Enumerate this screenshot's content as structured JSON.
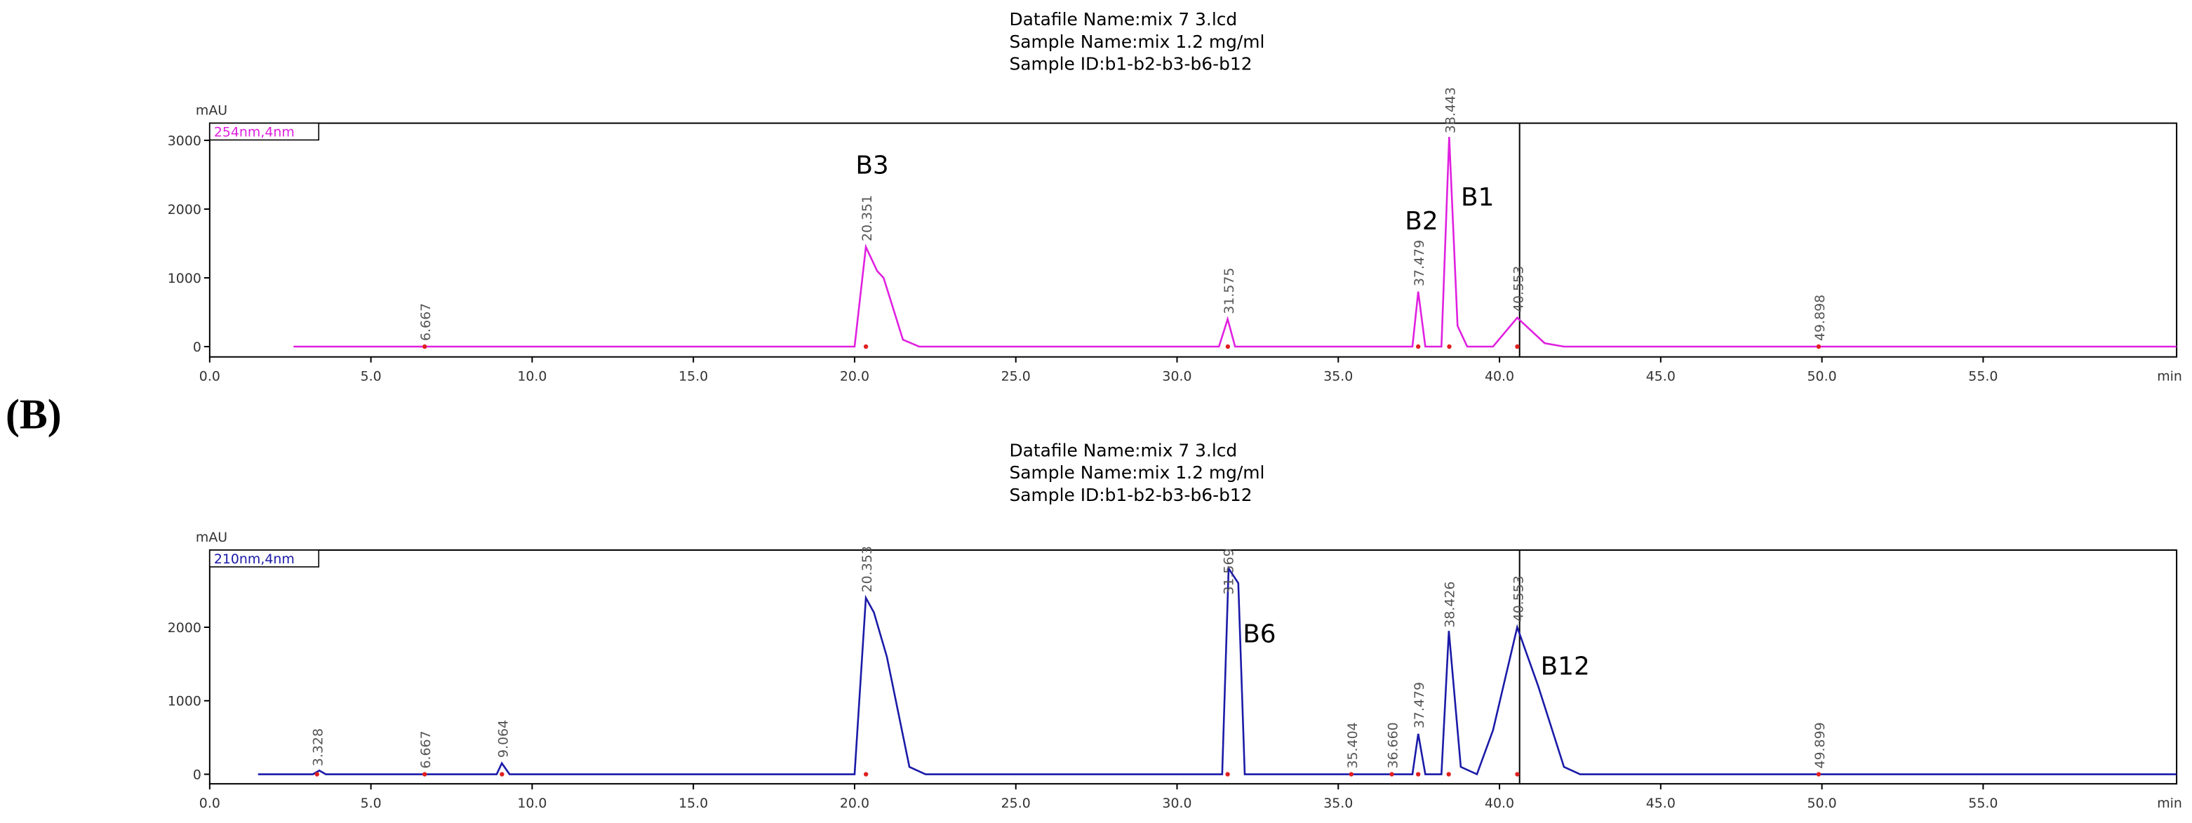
{
  "panel_label": "(B)",
  "chart_data": [
    {
      "type": "line",
      "title_lines": [
        "Datafile Name:mix 7 3.lcd",
        "Sample Name:mix 1.2 mg/ml",
        "Sample ID:b1-b2-b3-b6-b12"
      ],
      "y_label": "mAU",
      "x_label": "min",
      "x": [
        2.6,
        20.0,
        20.35,
        20.7,
        20.9,
        21.5,
        22.0,
        31.3,
        31.57,
        31.8,
        37.3,
        37.48,
        37.7,
        38.2,
        38.44,
        38.7,
        39.0,
        39.8,
        40.55,
        41.4,
        42.0,
        61.0
      ],
      "series": [
        {
          "name": "254nm,4nm",
          "color": "#e020e0",
          "values": [
            0,
            0,
            1450,
            1100,
            1000,
            100,
            0,
            0,
            400,
            0,
            0,
            800,
            0,
            0,
            3050,
            300,
            0,
            0,
            420,
            50,
            0,
            0
          ]
        }
      ],
      "peak_times": [
        6.667,
        20.351,
        31.575,
        37.479,
        38.443,
        40.553,
        49.898
      ],
      "compounds": [
        "B3",
        "B2",
        "B1"
      ],
      "xlim": [
        0,
        61
      ],
      "ylim": [
        -150,
        3250
      ],
      "xticks": [
        {
          "value": 0,
          "label": "0.0"
        },
        {
          "value": 5,
          "label": "5.0"
        },
        {
          "value": 10,
          "label": "10.0"
        },
        {
          "value": 15,
          "label": "15.0"
        },
        {
          "value": 20,
          "label": "20.0"
        },
        {
          "value": 25,
          "label": "25.0"
        },
        {
          "value": 30,
          "label": "30.0"
        },
        {
          "value": 35,
          "label": "35.0"
        },
        {
          "value": 40,
          "label": "40.0"
        },
        {
          "value": 45,
          "label": "45.0"
        },
        {
          "value": 50,
          "label": "50.0"
        },
        {
          "value": 55,
          "label": "55.0"
        }
      ],
      "yticks": [
        0,
        1000,
        2000,
        3000
      ]
    },
    {
      "type": "line",
      "title_lines": [
        "Datafile Name:mix 7 3.lcd",
        "Sample Name:mix 1.2 mg/ml",
        "Sample ID:b1-b2-b3-b6-b12"
      ],
      "y_label": "mAU",
      "x_label": "min",
      "x": [
        1.5,
        3.2,
        3.4,
        3.6,
        8.9,
        9.06,
        9.3,
        20.0,
        20.35,
        20.6,
        21.0,
        21.7,
        22.2,
        31.4,
        31.6,
        31.9,
        32.1,
        37.3,
        37.48,
        37.7,
        38.2,
        38.43,
        38.8,
        39.3,
        39.8,
        40.55,
        41.2,
        42.0,
        42.5,
        61.0
      ],
      "series": [
        {
          "name": "210nm,4nm",
          "color": "#1a1aa8",
          "values": [
            0,
            0,
            50,
            0,
            0,
            150,
            0,
            0,
            2400,
            2200,
            1600,
            100,
            0,
            0,
            2800,
            2600,
            0,
            0,
            550,
            0,
            0,
            1950,
            100,
            0,
            600,
            2000,
            1200,
            100,
            0,
            0
          ]
        }
      ],
      "peak_times": [
        3.328,
        6.667,
        9.064,
        20.353,
        31.569,
        35.404,
        {
          "value": 36.66,
          "label": "36.660"
        },
        37.479,
        38.426,
        40.553,
        49.899
      ],
      "compounds": [
        "B6",
        "B12"
      ],
      "xlim": [
        0,
        61
      ],
      "ylim": [
        -130,
        3050
      ],
      "xticks": [
        {
          "value": 0,
          "label": "0.0"
        },
        {
          "value": 5,
          "label": "5.0"
        },
        {
          "value": 10,
          "label": "10.0"
        },
        {
          "value": 15,
          "label": "15.0"
        },
        {
          "value": 20,
          "label": "20.0"
        },
        {
          "value": 25,
          "label": "25.0"
        },
        {
          "value": 30,
          "label": "30.0"
        },
        {
          "value": 35,
          "label": "35.0"
        },
        {
          "value": 40,
          "label": "40.0"
        },
        {
          "value": 45,
          "label": "45.0"
        },
        {
          "value": 50,
          "label": "50.0"
        },
        {
          "value": 55,
          "label": "55.0"
        }
      ],
      "yticks": [
        0,
        1000,
        2000
      ]
    }
  ]
}
